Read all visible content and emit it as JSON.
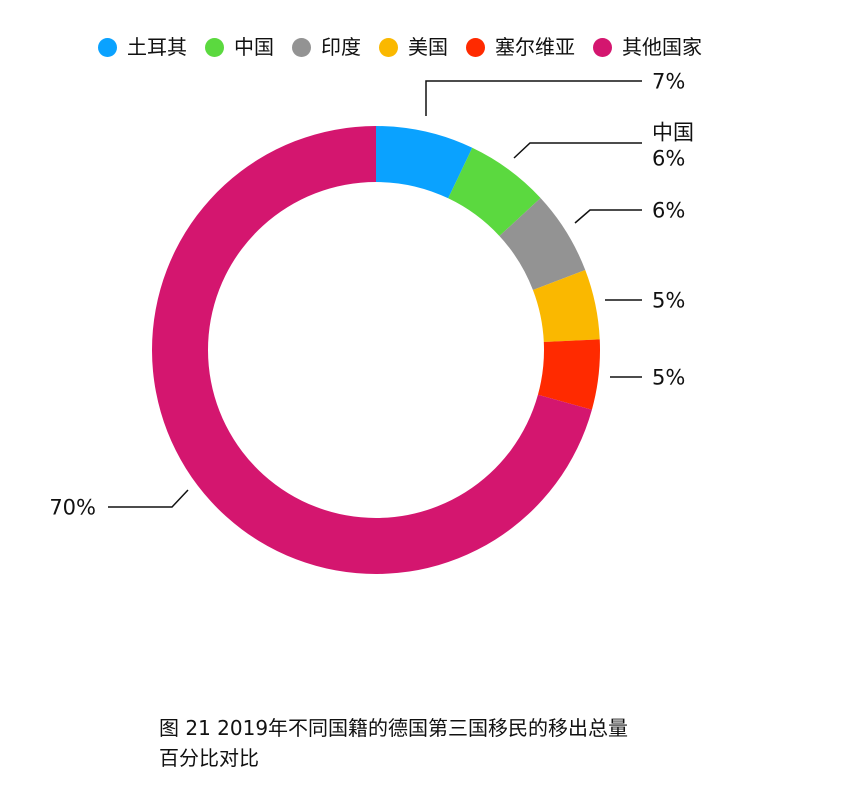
{
  "caption": "图 21 2019年不同国籍的德国第三国移民的移出总量百分比对比",
  "chart_data": {
    "type": "pie",
    "title": "",
    "categories": [
      "土耳其",
      "中国",
      "印度",
      "美国",
      "塞尔维亚",
      "其他国家"
    ],
    "values": [
      7,
      6,
      6,
      5,
      5,
      70
    ],
    "labels": [
      "7%",
      "6%",
      "6%",
      "5%",
      "5%",
      "70%"
    ],
    "label_lines": [
      [
        "7%"
      ],
      [
        "中国",
        "6%"
      ],
      [
        "6%"
      ],
      [
        "5%"
      ],
      [
        "5%"
      ],
      [
        "70%"
      ]
    ],
    "colors": [
      "#0aa2ff",
      "#5bd93f",
      "#939393",
      "#fab800",
      "#ff2a00",
      "#d4166f"
    ],
    "donut": true,
    "legend": "top",
    "grid": false
  }
}
